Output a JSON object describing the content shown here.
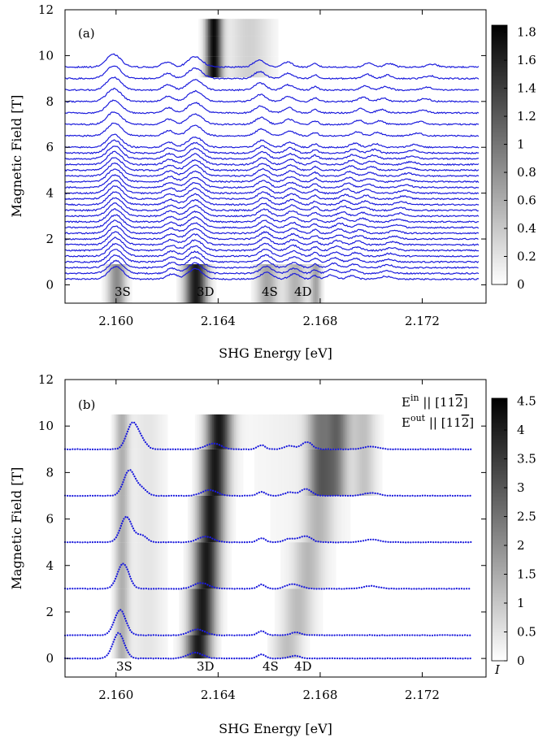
{
  "chart_data": [
    {
      "type": "heatmap",
      "panel_label": "(a)",
      "xlabel": "SHG Energy [eV]",
      "ylabel": "Magnetic Field [T]",
      "xlim": [
        2.158,
        2.1745
      ],
      "ylim": [
        -0.8,
        12
      ],
      "xticks": [
        "2.160",
        "2.164",
        "2.168",
        "2.172"
      ],
      "xtick_values": [
        2.16,
        2.164,
        2.168,
        2.172
      ],
      "yticks": [
        "0",
        "2",
        "4",
        "6",
        "8",
        "10",
        "12"
      ],
      "ytick_values": [
        0,
        2,
        4,
        6,
        8,
        10,
        12
      ],
      "colorbar": {
        "ticks": [
          "0",
          "0.2",
          "0.4",
          "0.6",
          "0.8",
          "1",
          "1.2",
          "1.4",
          "1.6",
          "1.8"
        ],
        "tick_values": [
          0,
          0.2,
          0.4,
          0.6,
          0.8,
          1.0,
          1.2,
          1.4,
          1.6,
          1.8
        ],
        "range": [
          0,
          1.85
        ]
      },
      "annotations": [
        "3S",
        "3D",
        "4S",
        "4D"
      ],
      "annotation_energies": [
        2.1601,
        2.1631,
        2.1659,
        2.167
      ],
      "series_offsets_T": [
        0.25,
        0.5,
        0.75,
        1.0,
        1.25,
        1.5,
        1.75,
        2.0,
        2.25,
        2.5,
        2.75,
        3.0,
        3.25,
        3.5,
        3.75,
        4.0,
        4.25,
        4.5,
        4.75,
        5.0,
        5.25,
        5.5,
        5.75,
        6.0,
        6.5,
        7.0,
        7.5,
        8.0,
        8.5,
        9.0,
        9.5
      ],
      "heatmap_xrange": [
        2.158,
        2.1717
      ],
      "heatmap_fields_T": [
        0,
        9,
        10,
        11
      ],
      "line_color": "#1a1adc"
    },
    {
      "type": "heatmap",
      "panel_label": "(b)",
      "legend": [
        "E",
        "in",
        " || [11",
        "2",
        "]",
        "E",
        "out",
        " || [11",
        "2",
        "]"
      ],
      "xlabel": "SHG Energy [eV]",
      "ylabel": "Magnetic Field [T]",
      "xlim": [
        2.158,
        2.1745
      ],
      "ylim": [
        -0.8,
        12
      ],
      "xticks": [
        "2.160",
        "2.164",
        "2.168",
        "2.172"
      ],
      "xtick_values": [
        2.16,
        2.164,
        2.168,
        2.172
      ],
      "yticks": [
        "0",
        "2",
        "4",
        "6",
        "8",
        "10",
        "12"
      ],
      "ytick_values": [
        0,
        2,
        4,
        6,
        8,
        10,
        12
      ],
      "colorbar": {
        "ticks": [
          "0",
          "0.5",
          "1",
          "1.5",
          "2",
          "2.5",
          "3",
          "3.5",
          "4",
          "4.5"
        ],
        "tick_values": [
          0,
          0.5,
          1,
          1.5,
          2,
          2.5,
          3,
          3.5,
          4,
          4.5
        ],
        "range": [
          0,
          4.55
        ],
        "label": "I"
      },
      "annotations": [
        "3S",
        "3D",
        "4S",
        "4D"
      ],
      "annotation_energies": [
        2.1601,
        2.1631,
        2.1659,
        2.167
      ],
      "series_offsets_T": [
        0,
        1,
        3,
        5,
        7,
        9
      ],
      "heatmap_xrange": [
        2.159,
        2.1715
      ],
      "line_color": "#1a1adc"
    }
  ]
}
